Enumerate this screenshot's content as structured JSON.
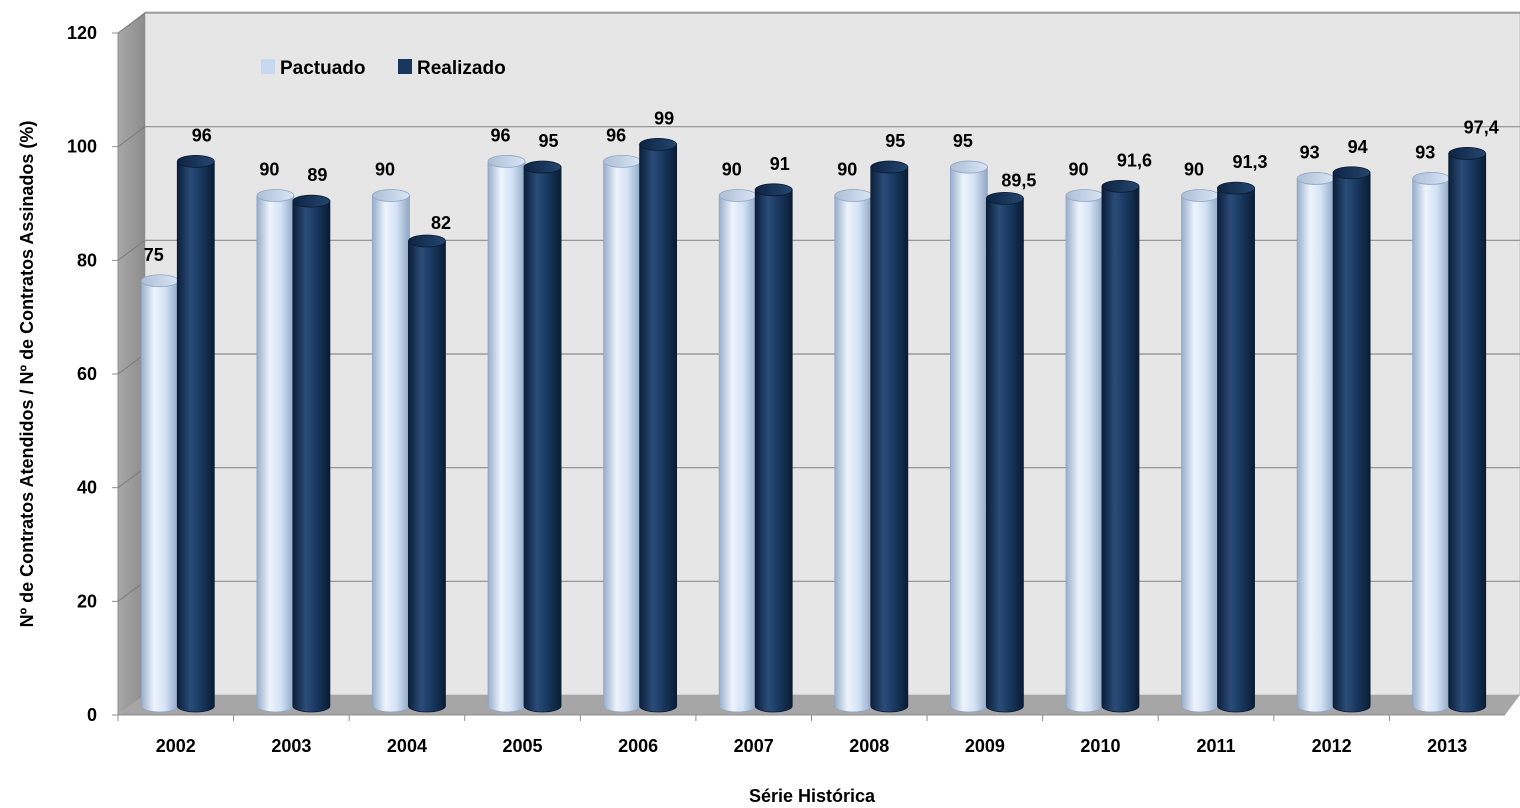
{
  "chart_data": {
    "type": "bar",
    "title": "",
    "xlabel": "Série Histórica",
    "ylabel": "Nº de Contratos Atendidos / Nº de Contratos Assinados (%)",
    "ylim": [
      0,
      120
    ],
    "yticks": [
      0,
      20,
      40,
      60,
      80,
      100,
      120
    ],
    "grid": true,
    "legend_position": "top-left",
    "categories": [
      "2002",
      "2003",
      "2004",
      "2005",
      "2006",
      "2007",
      "2008",
      "2009",
      "2010",
      "2011",
      "2012",
      "2013"
    ],
    "series": [
      {
        "name": "Pactuado",
        "color": "#c6d9f1",
        "values": [
          75,
          90,
          90,
          96,
          96,
          90,
          90,
          95,
          90,
          90,
          93,
          93
        ],
        "labels": [
          "75",
          "90",
          "90",
          "96",
          "96",
          "90",
          "90",
          "95",
          "90",
          "90",
          "93",
          "93"
        ]
      },
      {
        "name": "Realizado",
        "color": "#17375e",
        "values": [
          96,
          89,
          82,
          95,
          99,
          91,
          95,
          89.5,
          91.6,
          91.3,
          94,
          97.4
        ],
        "labels": [
          "96",
          "89",
          "82",
          "95",
          "99",
          "91",
          "95",
          "89,5",
          "91,6",
          "91,3",
          "94",
          "97,4"
        ]
      }
    ]
  }
}
